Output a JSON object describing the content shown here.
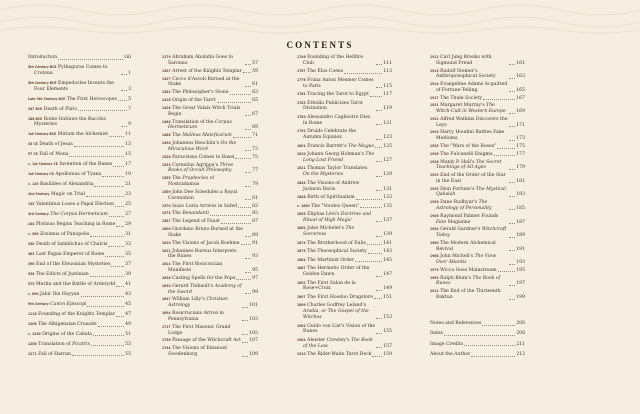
{
  "heading": "CONTENTS",
  "colors": {
    "background": "#f6efe1",
    "text": "#3b2c20",
    "date_label": "#6b4630"
  },
  "columns": [
    [
      {
        "date": "",
        "title": "Introduction",
        "page": "viii"
      },
      {
        "date": "5th Century BCE",
        "title": "Pythagoras Comes to Crotona",
        "page": "1"
      },
      {
        "date": "5th Century BCE",
        "title": "Empedocles Invents the Four Elements",
        "page": "3"
      },
      {
        "date": "Late 5th Century BCE",
        "title": "The First Horoscopes",
        "page": "5"
      },
      {
        "date": "347 BCE",
        "title": "Death of Plato",
        "page": "7"
      },
      {
        "date": "186 BCE",
        "title": "Rome Outlaws the Bacchic Mysteries",
        "page": "9"
      },
      {
        "date": "1st Century BCE",
        "title": "Miriam the Alchemist",
        "page": "11"
      },
      {
        "date": "33 CE",
        "title": "Death of Jesus",
        "page": "13"
      },
      {
        "date": "57 CE",
        "title": "Fall of Mona",
        "page": "15"
      },
      {
        "date": "c. 1st Century CE",
        "title": "Invention of the Runes",
        "page": "17"
      },
      {
        "date": "1st Century CE",
        "title": "Apollonius of Tyana",
        "page": "19"
      },
      {
        "date": "c. 120",
        "title": "Basilides of Alexandria",
        "page": "21"
      },
      {
        "date": "2nd Century",
        "title": "Magic on Trial",
        "page": "23"
      },
      {
        "date": "155",
        "title": "Valentinus Loses a Papal Election",
        "page": "25"
      },
      {
        "date": "3rd Century",
        "title": "The Corpus Hermeticum",
        "italic": "The Corpus Hermeticum",
        "page": "27"
      },
      {
        "date": "244",
        "title": "Plotinus Begins Teaching in Rome",
        "page": "29"
      },
      {
        "date": "c. 300",
        "title": "Zosimus of Panopolis",
        "page": "31"
      },
      {
        "date": "330",
        "title": "Death of Iamblichus of Chalcis",
        "page": "33"
      },
      {
        "date": "363",
        "title": "Last Pagan Emperor of Rome",
        "page": "35"
      },
      {
        "date": "396",
        "title": "End of the Eleusinian Mysteries",
        "page": "37"
      },
      {
        "date": "536",
        "title": "The Edicts of Justinian",
        "page": "39"
      },
      {
        "date": "573",
        "title": "Merlin and the Battle of Arderydd",
        "page": "41"
      },
      {
        "date": "c. 800",
        "title": "Jabir Ibn Hayyan",
        "page": "43"
      },
      {
        "date": "9th Century",
        "title": "Canon Episcopi",
        "italic": "Canon Episcopi",
        "page": "45"
      },
      {
        "date": "1118",
        "title": "Founding of the Knights Templar",
        "page": "47"
      },
      {
        "date": "1208",
        "title": "The Albigensian Crusade",
        "page": "49"
      },
      {
        "date": "c. 1230",
        "title": "Origins of the Cabala",
        "page": "51"
      },
      {
        "date": "1256",
        "title": "Translation of Picatrix",
        "italic": "Picatrix",
        "page": "53"
      },
      {
        "date": "1271",
        "title": "Fall of Harran",
        "page": "55"
      }
    ],
    [
      {
        "date": "1279",
        "title": "Abraham Abulafia Goes to Saronno",
        "page": "57"
      },
      {
        "date": "1307",
        "title": "Arrest of the Knights Templar",
        "page": "59"
      },
      {
        "date": "1327",
        "title": "Cecco d'Ascoli Burned at the Stake",
        "page": "61"
      },
      {
        "date": "1382",
        "title": "The Philosopher's Stone",
        "page": "63"
      },
      {
        "date": "1418",
        "title": "Origin of the Tarot",
        "page": "65"
      },
      {
        "date": "1428",
        "title": "The Great Valais Witch Trials Begin",
        "page": "67"
      },
      {
        "date": "1464",
        "title": "Translation of the Corpus Hermeticum",
        "italic": "Corpus Hermeticum",
        "page": "69"
      },
      {
        "date": "1486",
        "title": "The Malleus Maleficarum",
        "italic": "Malleus Maleficarum",
        "page": "71"
      },
      {
        "date": "1494",
        "title": "Johannes Reuchlin's On the Miraculous Word",
        "italic": "On the Miraculous Word",
        "page": "73"
      },
      {
        "date": "1526",
        "title": "Paracelsus Comes to Basel",
        "page": "75"
      },
      {
        "date": "1533",
        "title": "Cornelius Agrippa's Three Books of Occult Philosophy",
        "italic": "Three Books of Occult Philosophy",
        "page": "77"
      },
      {
        "date": "1555",
        "title": "The Prophecies of Nostradamus",
        "italic": "Prophecies",
        "page": "79"
      },
      {
        "date": "1559",
        "title": "John Dee Schedules a Royal Coronation",
        "page": "81"
      },
      {
        "date": "1570",
        "title": "Isaac Luria Arrives in Safed",
        "page": "83"
      },
      {
        "date": "1575",
        "title": "The Benandanti",
        "italic": "Benandanti",
        "page": "85"
      },
      {
        "date": "1587",
        "title": "The Legend of Faust",
        "page": "87"
      },
      {
        "date": "1600",
        "title": "Giordano Bruno Burned at the Stake",
        "page": "89"
      },
      {
        "date": "1610",
        "title": "The Visions of Jacob Boehme",
        "page": "91"
      },
      {
        "date": "1611",
        "title": "Johannes Bureus Interprets the Runes",
        "page": "93"
      },
      {
        "date": "1614",
        "title": "The First Rosicrucian Manifesto",
        "page": "95"
      },
      {
        "date": "1628",
        "title": "Casting Spells for the Pope",
        "page": "97"
      },
      {
        "date": "1630",
        "title": "Gerard Thibault's Academy of the Sword",
        "italic": "Academy of the Sword",
        "page": "99"
      },
      {
        "date": "1647",
        "title": "William Lilly's Christian Astrology",
        "italic": "Christian Astrology",
        "page": "101"
      },
      {
        "date": "1694",
        "title": "Rosicrucians Arrive in Pennsylvania",
        "page": "103"
      },
      {
        "date": "1717",
        "title": "The First Masonic Grand Lodge",
        "page": "105"
      },
      {
        "date": "1736",
        "title": "Passage of the Witchcraft Act",
        "page": "107"
      },
      {
        "date": "1744",
        "title": "The Visions of Emanuel Swedenborg",
        "page": "109"
      }
    ],
    [
      {
        "date": "1746",
        "title": "Founding of the Hellfire Club",
        "page": "111"
      },
      {
        "date": "1767",
        "title": "The Élus Coens",
        "page": "113"
      },
      {
        "date": "1776",
        "title": "Franz Anton Mesmer Comes to Paris",
        "page": "115"
      },
      {
        "date": "1781",
        "title": "Tracing the Tarot to Egypt",
        "page": "117"
      },
      {
        "date": "1783",
        "title": "Etteilla Publicizes Tarot Divination",
        "page": "119"
      },
      {
        "date": "1785",
        "title": "Alessandro Cagliostro Dies in Rome",
        "page": "121"
      },
      {
        "date": "1792",
        "title": "Druids Celebrate the Autumn Equinox",
        "page": "123"
      },
      {
        "date": "1801",
        "title": "Francis Barrett's The Magus",
        "italic": "The Magus",
        "page": "125"
      },
      {
        "date": "1820",
        "title": "Johann Georg Hohman's The Long Lost Friend",
        "italic": "The Long Lost Friend",
        "page": "127"
      },
      {
        "date": "1821",
        "title": "Thomas Taylor Translates On the Mysteries",
        "italic": "On the Mysteries",
        "page": "129"
      },
      {
        "date": "1844",
        "title": "The Visions of Andrew Jackson Davis",
        "page": "131"
      },
      {
        "date": "1848",
        "title": "Birth of Spiritualism",
        "page": "133"
      },
      {
        "date": "c. 1850",
        "title": "The \"Voodoo Queen\"",
        "page": "135"
      },
      {
        "date": "1855",
        "title": "Éliphas Lévi's Doctrine and Ritual of High Magic",
        "italic": "Doctrine and Ritual of High Magic",
        "page": "137"
      },
      {
        "date": "1862",
        "title": "Jules Michelet's The Sorceress",
        "italic": "The Sorceress",
        "page": "139"
      },
      {
        "date": "1874",
        "title": "The Brotherhood of Eulis",
        "page": "141"
      },
      {
        "date": "1875",
        "title": "The Theosophical Society",
        "page": "143"
      },
      {
        "date": "1884",
        "title": "The Martinist Order",
        "page": "145"
      },
      {
        "date": "1887",
        "title": "The Hermetic Order of the Golden Dawn",
        "page": "147"
      },
      {
        "date": "1892",
        "title": "The First Salon de la Rose+Croix",
        "page": "149"
      },
      {
        "date": "1897",
        "title": "The First Hoodoo Drugstore",
        "page": "151"
      },
      {
        "date": "1899",
        "title": "Charles Godfrey Leland's Aradia, or The Gospel of the Witches",
        "italic": "Aradia, or The Gospel of the Witches",
        "page": "153"
      },
      {
        "date": "1902",
        "title": "Guido von List's Vision of the Runes",
        "page": "155"
      },
      {
        "date": "1904",
        "title": "Aleister Crowley's The Book of the Law",
        "italic": "The Book of the Law",
        "page": "157"
      },
      {
        "date": "1910",
        "title": "The Rider-Waite Tarot Deck",
        "page": "159"
      }
    ],
    [
      {
        "date": "1912",
        "title": "Carl Jung Breaks with Sigmund Freud",
        "page": "161"
      },
      {
        "date": "1913",
        "title": "Rudolf Steiner's Anthroposophical Society",
        "page": "163"
      },
      {
        "date": "1914",
        "title": "Evangeline Adams Acquitted of Fortune-Telling",
        "page": "165"
      },
      {
        "date": "1917",
        "title": "The Thule Society",
        "page": "167"
      },
      {
        "date": "1921",
        "title": "Margaret Murray's The Witch-Cult in Western Europe",
        "italic": "The Witch-Cult in Western Europe",
        "page": "169"
      },
      {
        "date": "1922",
        "title": "Alfred Watkins Discovers the Leys",
        "page": "171"
      },
      {
        "date": "1924",
        "title": "Harry Houdini Battles Fake Mediums",
        "page": "173"
      },
      {
        "date": "1925",
        "title": "The \"Wars of the Roses\"",
        "page": "175"
      },
      {
        "date": "1926",
        "title": "The Fulcanelli Enigma",
        "page": "177"
      },
      {
        "date": "1928",
        "title": "Manly P. Hall's The Secret Teachings of All Ages",
        "italic": "The Secret Teachings of All Ages",
        "page": "179"
      },
      {
        "date": "1929",
        "title": "End of the Order of the Star in the East",
        "page": "181"
      },
      {
        "date": "1935",
        "title": "Dion Fortune's The Mystical Qabalah",
        "italic": "The Mystical Qabalah",
        "page": "183"
      },
      {
        "date": "1936",
        "title": "Dane Rudhyar's The Astrology of Personality",
        "italic": "The Astrology of Personality",
        "page": "185"
      },
      {
        "date": "1946",
        "title": "Raymond Palmer Founds Fate Magazine",
        "italic": "Fate",
        "page": "187"
      },
      {
        "date": "1954",
        "title": "Gerald Gardner's Witchcraft Today",
        "italic": "Witchcraft Today",
        "page": "189"
      },
      {
        "date": "1960",
        "title": "The Modern Alchemical Revival",
        "page": "191"
      },
      {
        "date": "1968",
        "title": "John Michell's The View Over Atlantis",
        "italic": "The View Over Atlantis",
        "page": "193"
      },
      {
        "date": "1979",
        "title": "Wicca Goes Mainstream",
        "page": "195"
      },
      {
        "date": "1983",
        "title": "Ralph Blum's The Book of Runes",
        "italic": "The Book of Runes",
        "page": "197"
      },
      {
        "date": "2012",
        "title": "The End of the Thirteenth Baktun",
        "page": "199"
      }
    ]
  ],
  "back_matter": [
    {
      "date": "",
      "title": "Notes and References",
      "page": "200"
    },
    {
      "date": "",
      "title": "Index",
      "page": "208"
    },
    {
      "date": "",
      "title": "Image Credits",
      "page": "211"
    },
    {
      "date": "",
      "title": "About the Author",
      "page": "212"
    }
  ]
}
